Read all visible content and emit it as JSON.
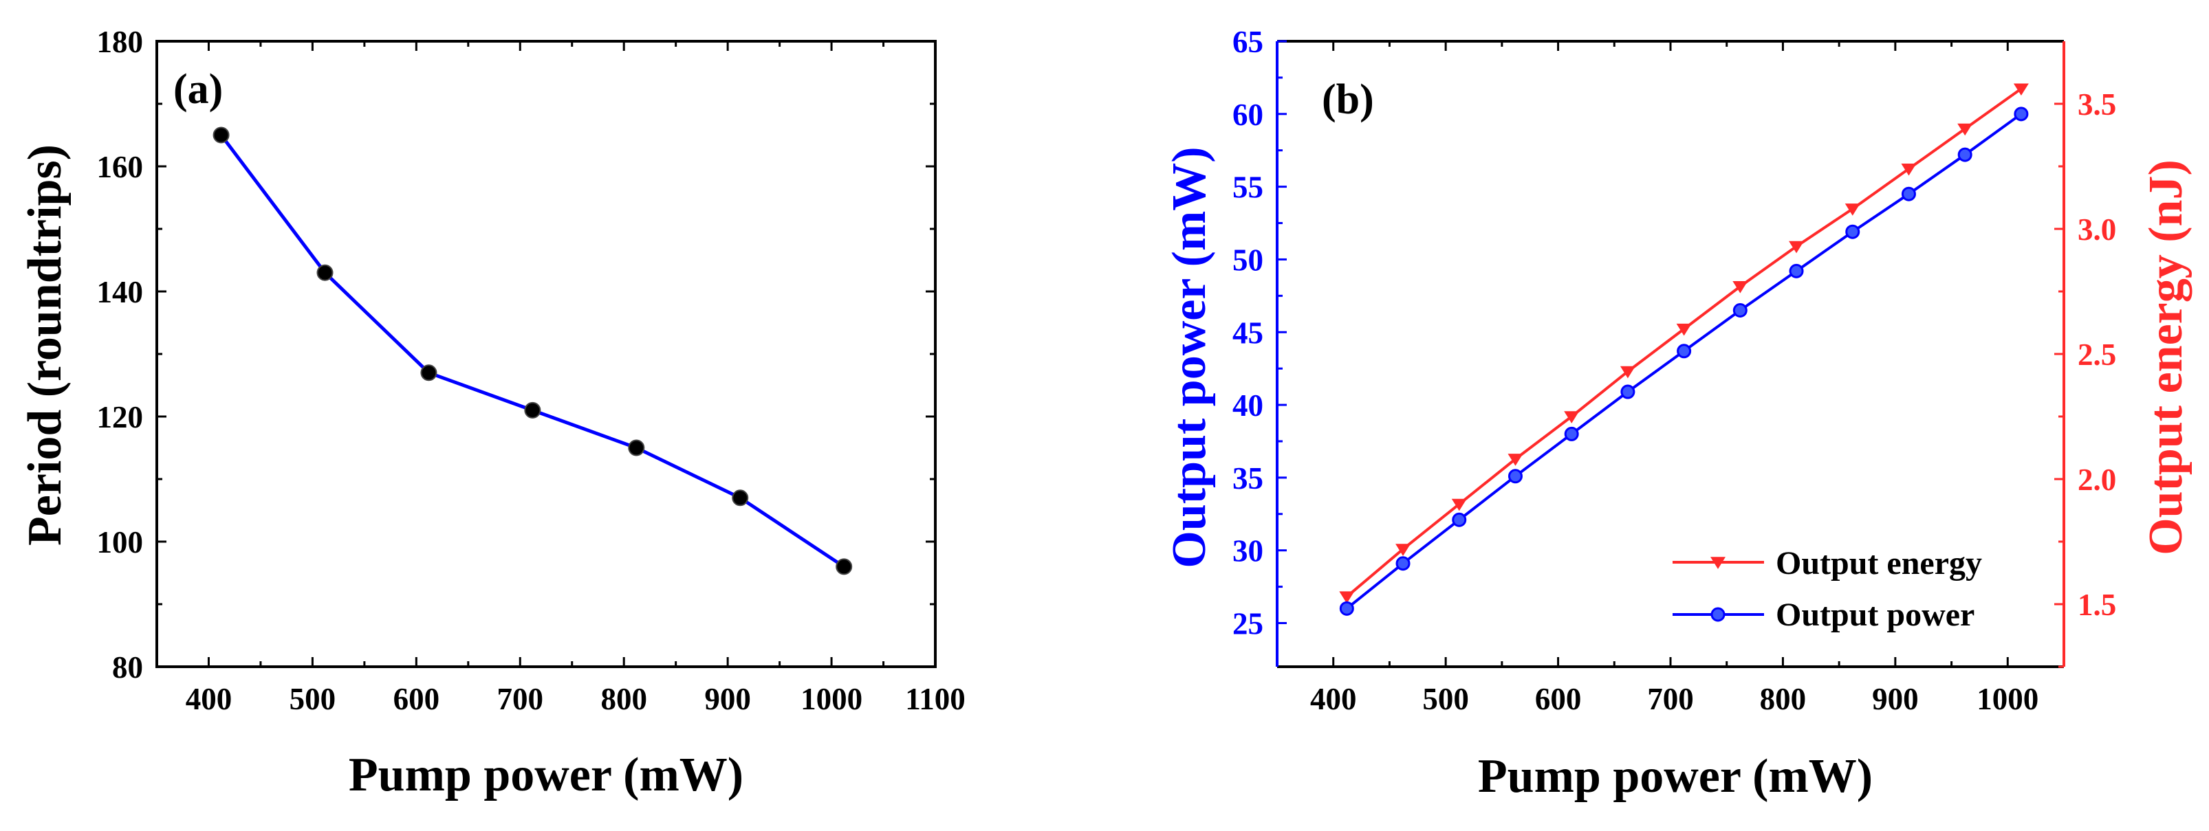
{
  "colors": {
    "axis": "#000000",
    "blue": "#0000ff",
    "red": "#ff2a2a",
    "marker": "#000000"
  },
  "chart_data": [
    {
      "panel_label": "(a)",
      "type": "line",
      "xlabel": "Pump power (mW)",
      "ylabel": "Period (roundtrips)",
      "xlim": [
        350,
        1100
      ],
      "ylim": [
        80,
        180
      ],
      "xticks": [
        400,
        500,
        600,
        700,
        800,
        900,
        1000,
        1100
      ],
      "yticks": [
        80,
        100,
        120,
        140,
        160,
        180
      ],
      "series": [
        {
          "name": "Period",
          "x": [
            412,
            512,
            612,
            712,
            812,
            912,
            1012
          ],
          "y": [
            165,
            143,
            127,
            121,
            115,
            107,
            96
          ]
        }
      ]
    },
    {
      "panel_label": "(b)",
      "type": "line",
      "xlabel": "Pump power (mW)",
      "ylabel_left": "Output power (mW)",
      "ylabel_right": "Output energy (nJ)",
      "xlim": [
        350,
        1050
      ],
      "ylim_left": [
        22,
        65
      ],
      "ylim_right": [
        1.25,
        3.75
      ],
      "xticks": [
        400,
        500,
        600,
        700,
        800,
        900,
        1000
      ],
      "yticks_left": [
        25,
        30,
        35,
        40,
        45,
        50,
        55,
        60,
        65
      ],
      "yticks_right": [
        1.5,
        2.0,
        2.5,
        3.0,
        3.5
      ],
      "legend_position": "bottom-right",
      "series": [
        {
          "name": "Output energy",
          "axis": "right",
          "marker": "down-triangle",
          "x": [
            412,
            462,
            512,
            562,
            612,
            662,
            712,
            762,
            812,
            862,
            912,
            962,
            1012
          ],
          "y": [
            1.53,
            1.72,
            1.9,
            2.08,
            2.25,
            2.43,
            2.6,
            2.77,
            2.93,
            3.08,
            3.24,
            3.4,
            3.56
          ]
        },
        {
          "name": "Output power",
          "axis": "left",
          "marker": "circle",
          "x": [
            412,
            462,
            512,
            562,
            612,
            662,
            712,
            762,
            812,
            862,
            912,
            962,
            1012
          ],
          "y": [
            26.0,
            29.1,
            32.1,
            35.1,
            38.0,
            40.9,
            43.7,
            46.5,
            49.2,
            51.9,
            54.5,
            57.2,
            60.0
          ]
        }
      ]
    }
  ]
}
